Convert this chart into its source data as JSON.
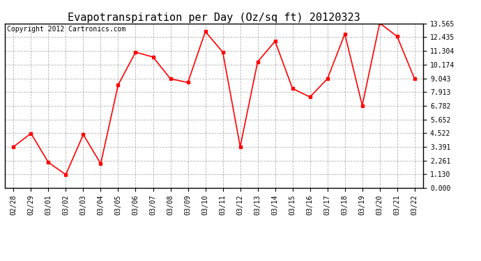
{
  "title": "Evapotranspiration per Day (Oz/sq ft) 20120323",
  "copyright": "Copyright 2012 Cartronics.com",
  "dates": [
    "02/28",
    "02/29",
    "03/01",
    "03/02",
    "03/03",
    "03/04",
    "03/05",
    "03/06",
    "03/07",
    "03/08",
    "03/09",
    "03/10",
    "03/11",
    "03/12",
    "03/13",
    "03/14",
    "03/15",
    "03/16",
    "03/17",
    "03/18",
    "03/19",
    "03/20",
    "03/21",
    "03/22"
  ],
  "values": [
    3.4,
    4.5,
    2.1,
    1.1,
    4.4,
    2.0,
    8.5,
    11.2,
    10.8,
    9.0,
    8.7,
    12.9,
    11.2,
    3.4,
    10.4,
    12.1,
    8.2,
    7.5,
    9.0,
    12.7,
    6.8,
    13.6,
    12.5,
    9.0
  ],
  "yticks": [
    0.0,
    1.13,
    2.261,
    3.391,
    4.522,
    5.652,
    6.782,
    7.913,
    9.043,
    10.174,
    11.304,
    12.435,
    13.565
  ],
  "ylim": [
    0.0,
    13.565
  ],
  "line_color": "red",
  "marker": "s",
  "marker_size": 3,
  "background_color": "#ffffff",
  "grid_color": "#aaaaaa",
  "title_fontsize": 11,
  "tick_fontsize": 7,
  "copyright_fontsize": 7
}
